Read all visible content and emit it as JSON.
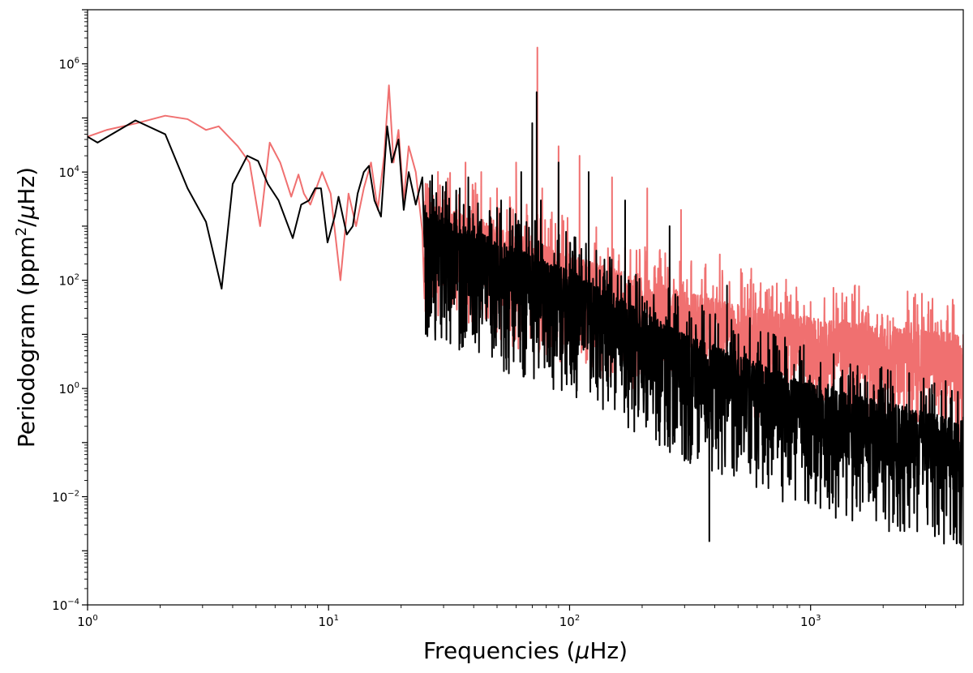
{
  "chart_data": {
    "type": "line",
    "title": "",
    "xlabel_main": "Frequencies (",
    "xlabel_mu": "μ",
    "xlabel_unit": "Hz)",
    "ylabel_main": "Periodogram (ppm",
    "ylabel_sup": "2",
    "ylabel_slash": "/",
    "ylabel_mu": "μ",
    "ylabel_unit": "Hz)",
    "xscale": "log",
    "yscale": "log",
    "xlim": [
      1,
      4300
    ],
    "ylim": [
      0.0001,
      10000000
    ],
    "x_ticks": [
      {
        "value": 1,
        "base": "10",
        "exp": "0"
      },
      {
        "value": 10,
        "base": "10",
        "exp": "1"
      },
      {
        "value": 100,
        "base": "10",
        "exp": "2"
      },
      {
        "value": 1000,
        "base": "10",
        "exp": "3"
      }
    ],
    "y_ticks": [
      {
        "value": 0.0001,
        "base": "10",
        "exp": "−4"
      },
      {
        "value": 0.01,
        "base": "10",
        "exp": "−2"
      },
      {
        "value": 1,
        "base": "10",
        "exp": "0"
      },
      {
        "value": 100,
        "base": "10",
        "exp": "2"
      },
      {
        "value": 10000,
        "base": "10",
        "exp": "4"
      },
      {
        "value": 1000000,
        "base": "10",
        "exp": "6"
      }
    ],
    "grid": false,
    "legend": "none",
    "series": [
      {
        "color": "#f07070",
        "points": [
          [
            1.0,
            45000
          ],
          [
            1.2,
            60000
          ],
          [
            1.6,
            80000
          ],
          [
            2.1,
            110000
          ],
          [
            2.6,
            95000
          ],
          [
            3.1,
            60000
          ],
          [
            3.5,
            70000
          ],
          [
            4.2,
            30000
          ],
          [
            4.7,
            15000
          ],
          [
            5.2,
            1000
          ],
          [
            5.7,
            35000
          ],
          [
            6.3,
            15000
          ],
          [
            7.0,
            3500
          ],
          [
            7.5,
            9000
          ],
          [
            7.9,
            4000
          ],
          [
            8.4,
            2500
          ],
          [
            9.4,
            10000
          ],
          [
            10.2,
            4000
          ],
          [
            11.2,
            100
          ],
          [
            12.1,
            4000
          ],
          [
            13.0,
            1000
          ],
          [
            14.0,
            5000
          ],
          [
            15.0,
            15000
          ],
          [
            16.0,
            2000
          ],
          [
            17.0,
            20000
          ],
          [
            17.8,
            400000
          ],
          [
            18.6,
            15000
          ],
          [
            19.5,
            60000
          ],
          [
            20.5,
            3000
          ],
          [
            21.5,
            30000
          ],
          [
            23.0,
            10000
          ],
          [
            24.5,
            800
          ],
          [
            26.0,
            5000
          ],
          [
            28.0,
            300
          ],
          [
            30.0,
            3000
          ],
          [
            32.0,
            30
          ],
          [
            34.0,
            2000
          ],
          [
            37.0,
            15000
          ],
          [
            40.0,
            500
          ],
          [
            43.0,
            10000
          ],
          [
            46.0,
            20
          ],
          [
            50.0,
            5000
          ],
          [
            55.0,
            2000
          ],
          [
            60.0,
            15000
          ],
          [
            65.0,
            500
          ],
          [
            70.0,
            40000
          ],
          [
            73.5,
            2000000
          ],
          [
            77.0,
            5000
          ],
          [
            82.0,
            100
          ],
          [
            90.0,
            30000
          ],
          [
            100.0,
            500
          ],
          [
            110.0,
            20000
          ],
          [
            130.0,
            200
          ],
          [
            150.0,
            8000
          ],
          [
            180.0,
            50
          ],
          [
            210.0,
            5000
          ],
          [
            250.0,
            20
          ],
          [
            290.0,
            2000
          ],
          [
            340.0,
            30
          ],
          [
            420.0,
            300
          ],
          [
            520.0,
            80
          ],
          [
            650.0,
            60
          ],
          [
            800.0,
            50
          ],
          [
            1000.0,
            40
          ],
          [
            1300.0,
            30
          ],
          [
            1700.0,
            25
          ],
          [
            2200.0,
            20
          ],
          [
            2800.0,
            15
          ],
          [
            3500.0,
            12
          ],
          [
            4300.0,
            10
          ]
        ],
        "noise": {
          "fmin": 25,
          "fmax": 4300,
          "n": 2400,
          "base": [
            [
              25,
              3000
            ],
            [
              100,
              300
            ],
            [
              300,
              60
            ],
            [
              1000,
              20
            ],
            [
              4300,
              10
            ]
          ],
          "spread_dec": 1.5,
          "floor": 0.0001,
          "seed": 7
        }
      },
      {
        "color": "#000000",
        "points": [
          [
            1.0,
            45000
          ],
          [
            1.1,
            35000
          ],
          [
            1.58,
            90000
          ],
          [
            2.1,
            50000
          ],
          [
            2.6,
            5000
          ],
          [
            3.1,
            1200
          ],
          [
            3.6,
            70
          ],
          [
            4.0,
            6000
          ],
          [
            4.6,
            20000
          ],
          [
            5.1,
            16000
          ],
          [
            5.6,
            6000
          ],
          [
            6.2,
            3000
          ],
          [
            7.1,
            600
          ],
          [
            7.7,
            2500
          ],
          [
            8.3,
            3000
          ],
          [
            8.8,
            5000
          ],
          [
            9.3,
            5000
          ],
          [
            9.9,
            500
          ],
          [
            10.6,
            1500
          ],
          [
            11.0,
            3500
          ],
          [
            11.9,
            700
          ],
          [
            12.6,
            1000
          ],
          [
            13.2,
            4000
          ],
          [
            14.0,
            10000
          ],
          [
            14.7,
            13000
          ],
          [
            15.5,
            3000
          ],
          [
            16.5,
            1500
          ],
          [
            17.5,
            70000
          ],
          [
            18.3,
            15000
          ],
          [
            19.5,
            40000
          ],
          [
            20.5,
            2000
          ],
          [
            21.5,
            10000
          ],
          [
            23.0,
            2500
          ],
          [
            24.5,
            8000
          ],
          [
            25.5,
            500
          ],
          [
            27.0,
            1000
          ],
          [
            28.5,
            100
          ],
          [
            30.0,
            1000
          ],
          [
            32.0,
            200
          ],
          [
            35.0,
            5000
          ],
          [
            38.0,
            8000
          ],
          [
            42.0,
            300
          ],
          [
            47.0,
            15
          ],
          [
            52.0,
            3000
          ],
          [
            58.0,
            1000
          ],
          [
            63.0,
            10000
          ],
          [
            67.0,
            300
          ],
          [
            70.0,
            80000
          ],
          [
            73.0,
            300000
          ],
          [
            76.0,
            3000
          ],
          [
            82.0,
            30
          ],
          [
            90.0,
            15000
          ],
          [
            100.0,
            200
          ],
          [
            120.0,
            10000
          ],
          [
            140.0,
            100
          ],
          [
            170.0,
            3000
          ],
          [
            200.0,
            50
          ],
          [
            260.0,
            1000
          ],
          [
            320.0,
            20
          ],
          [
            380.0,
            0.0015
          ],
          [
            450.0,
            80
          ],
          [
            560.0,
            20
          ],
          [
            700.0,
            10
          ],
          [
            900.0,
            5
          ],
          [
            1100.0,
            3
          ],
          [
            1500.0,
            2
          ],
          [
            2000.0,
            1
          ],
          [
            3000.0,
            0.5
          ],
          [
            4300.0,
            0.3
          ]
        ],
        "noise": {
          "fmin": 25,
          "fmax": 4300,
          "n": 2600,
          "base": [
            [
              25,
              2000
            ],
            [
              100,
              150
            ],
            [
              300,
              10
            ],
            [
              1000,
              1.2
            ],
            [
              4300,
              0.25
            ]
          ],
          "spread_dec": 1.7,
          "floor": 0.0001,
          "seed": 13
        }
      }
    ]
  }
}
